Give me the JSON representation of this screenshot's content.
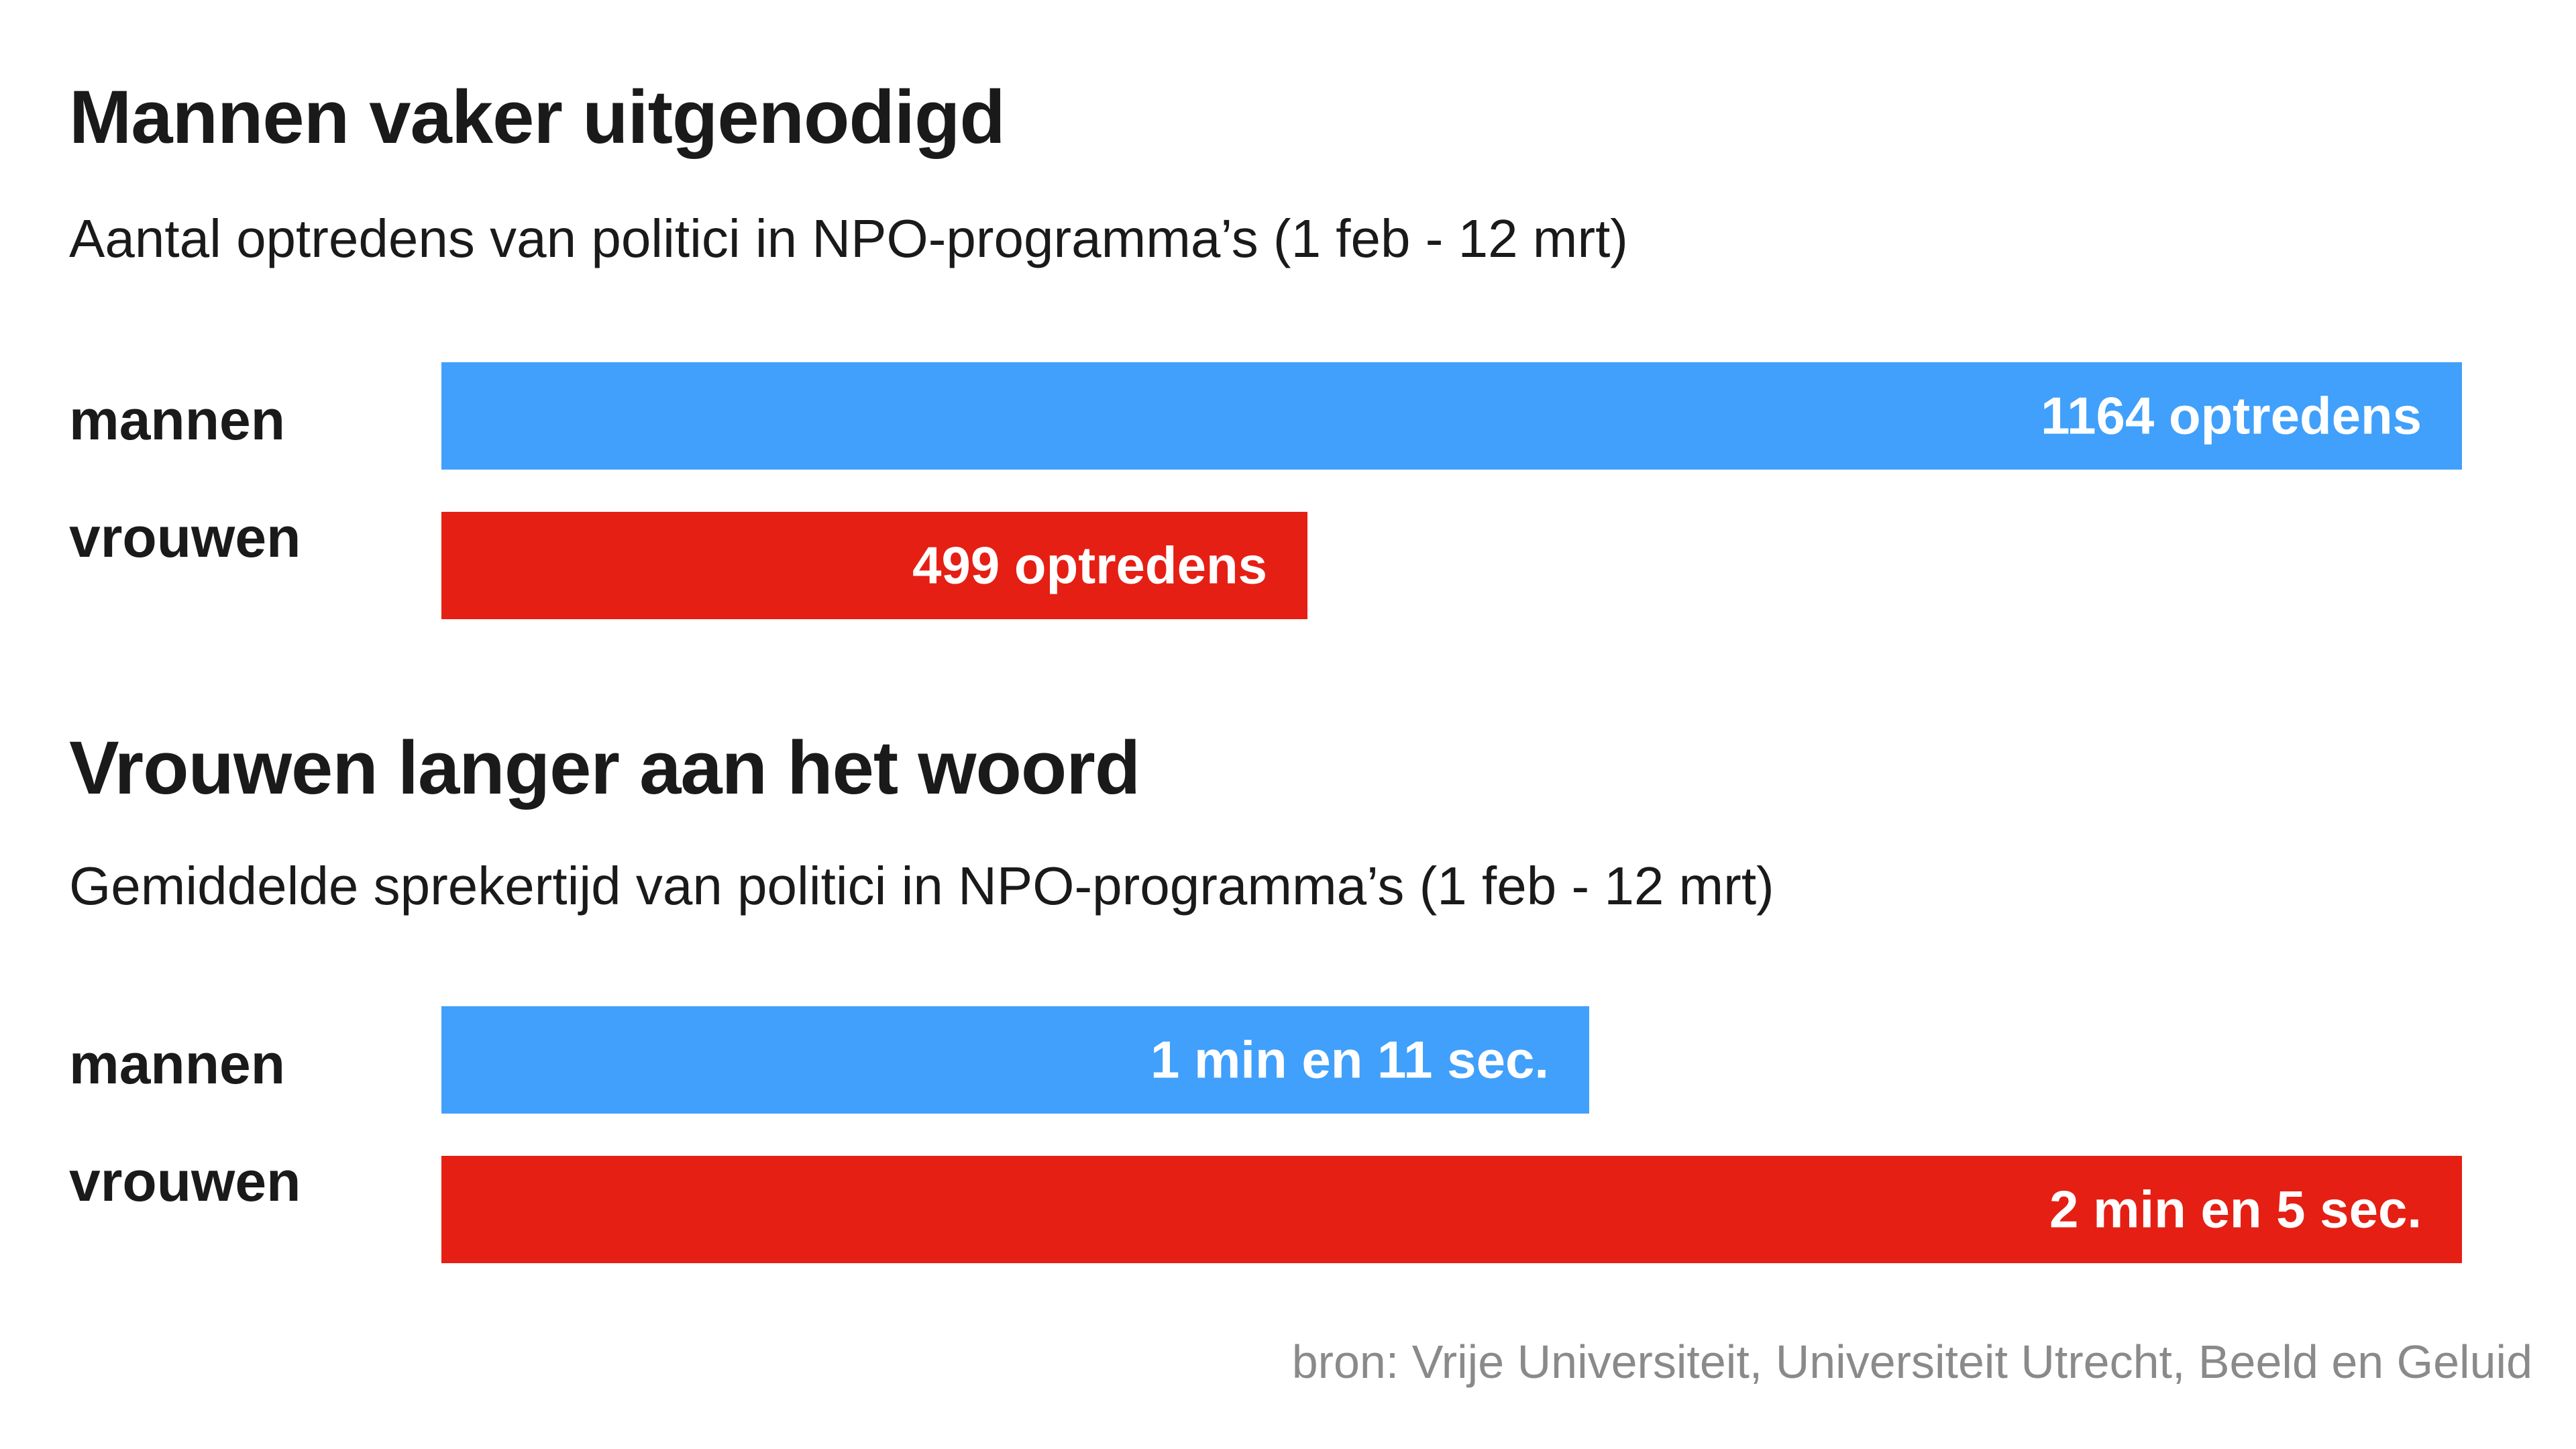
{
  "colors": {
    "men": "#40a0fb",
    "women": "#e51f14",
    "text": "#1a1a1a",
    "source": "#8a8a8a"
  },
  "source": "bron: Vrije Universiteit, Universiteit Utrecht, Beeld en Geluid",
  "chart_data": [
    {
      "type": "bar",
      "orientation": "horizontal",
      "title": "Mannen vaker uitgenodigd",
      "subtitle": "Aantal optredens van politici in NPO-programma’s (1 feb - 12 mrt)",
      "categories": [
        "mannen",
        "vrouwen"
      ],
      "values": [
        1164,
        499
      ],
      "data_labels": [
        "1164 optredens",
        "499 optredens"
      ],
      "bar_colors": [
        "#40a0fb",
        "#e51f14"
      ],
      "xlim": [
        0,
        1164
      ],
      "grid": false
    },
    {
      "type": "bar",
      "orientation": "horizontal",
      "title": "Vrouwen langer aan het woord",
      "subtitle": "Gemiddelde sprekertijd van politici in NPO-programma’s (1 feb - 12 mrt)",
      "categories": [
        "mannen",
        "vrouwen"
      ],
      "values": [
        71,
        125
      ],
      "units": "seconds",
      "data_labels": [
        "1 min en 11 sec.",
        "2 min en 5 sec."
      ],
      "bar_colors": [
        "#40a0fb",
        "#e51f14"
      ],
      "xlim": [
        0,
        125
      ],
      "grid": false
    }
  ]
}
